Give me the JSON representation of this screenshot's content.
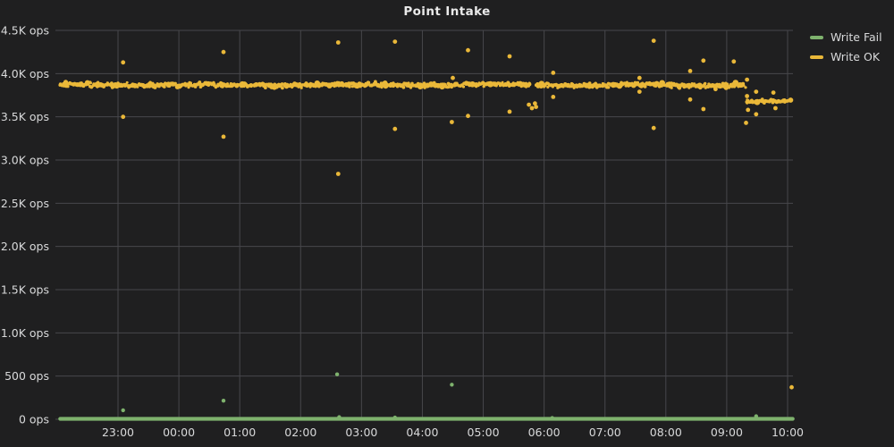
{
  "title": "Point Intake",
  "ui_colors": {
    "background": "#1f1f20",
    "grid": "#47474b",
    "text": "#d8d9da",
    "title": "#eaeaea"
  },
  "chart_data": {
    "type": "scatter",
    "title": "Point Intake",
    "grid": true,
    "legend_position": "top-right",
    "x_axis": {
      "start": "21:58",
      "end": "10:05",
      "tick_labels": [
        "23:00",
        "00:00",
        "01:00",
        "02:00",
        "03:00",
        "04:00",
        "05:00",
        "06:00",
        "07:00",
        "08:00",
        "09:00",
        "10:00"
      ]
    },
    "y_axis": {
      "min": 0,
      "max": 4500,
      "tick_step": 500,
      "unit": "ops",
      "tick_labels": [
        "0 ops",
        "500 ops",
        "1.0K ops",
        "1.5K ops",
        "2.0K ops",
        "2.5K ops",
        "3.0K ops",
        "3.5K ops",
        "4.0K ops",
        "4.5K ops"
      ]
    },
    "series": [
      {
        "name": "Write Fail",
        "color": "#7EB26D",
        "style": "line-with-points",
        "baseline_value": 0,
        "baseline_from": "22:03",
        "baseline_to": "10:05",
        "points": [
          [
            "23:05",
            105
          ],
          [
            "00:44",
            215
          ],
          [
            "02:36",
            520
          ],
          [
            "02:38",
            25
          ],
          [
            "03:33",
            20
          ],
          [
            "04:29",
            400
          ],
          [
            "06:08",
            15
          ],
          [
            "09:29",
            35
          ]
        ]
      },
      {
        "name": "Write OK",
        "color": "#EAB839",
        "style": "points",
        "band_segments": [
          {
            "from": "22:03",
            "to": "05:46",
            "mean": 3870,
            "half_range": 38
          },
          {
            "from": "05:52",
            "to": "09:18",
            "mean": 3868,
            "half_range": 38
          },
          {
            "from": "09:19",
            "to": "10:04",
            "mean": 3678,
            "half_range": 28
          }
        ],
        "outliers": [
          [
            "23:05",
            4130
          ],
          [
            "23:05",
            3500
          ],
          [
            "00:44",
            4250
          ],
          [
            "00:44",
            3270
          ],
          [
            "02:37",
            4360
          ],
          [
            "02:37",
            2840
          ],
          [
            "03:33",
            4370
          ],
          [
            "03:33",
            3360
          ],
          [
            "04:29",
            3440
          ],
          [
            "04:30",
            3950
          ],
          [
            "04:45",
            4270
          ],
          [
            "04:45",
            3510
          ],
          [
            "05:26",
            4200
          ],
          [
            "05:26",
            3560
          ],
          [
            "05:45",
            3640
          ],
          [
            "05:48",
            3600
          ],
          [
            "05:51",
            3655
          ],
          [
            "05:52",
            3615
          ],
          [
            "06:09",
            4010
          ],
          [
            "06:09",
            3730
          ],
          [
            "07:34",
            3950
          ],
          [
            "07:34",
            3790
          ],
          [
            "07:48",
            4380
          ],
          [
            "07:48",
            3370
          ],
          [
            "08:24",
            4030
          ],
          [
            "08:24",
            3700
          ],
          [
            "08:37",
            4150
          ],
          [
            "08:37",
            3590
          ],
          [
            "08:49",
            3820
          ],
          [
            "09:07",
            4140
          ],
          [
            "09:19",
            3430
          ],
          [
            "09:20",
            3930
          ],
          [
            "09:20",
            3740
          ],
          [
            "09:21",
            3580
          ],
          [
            "09:29",
            3790
          ],
          [
            "09:29",
            3530
          ],
          [
            "09:46",
            3780
          ],
          [
            "09:48",
            3600
          ],
          [
            "10:04",
            370
          ]
        ]
      }
    ]
  }
}
